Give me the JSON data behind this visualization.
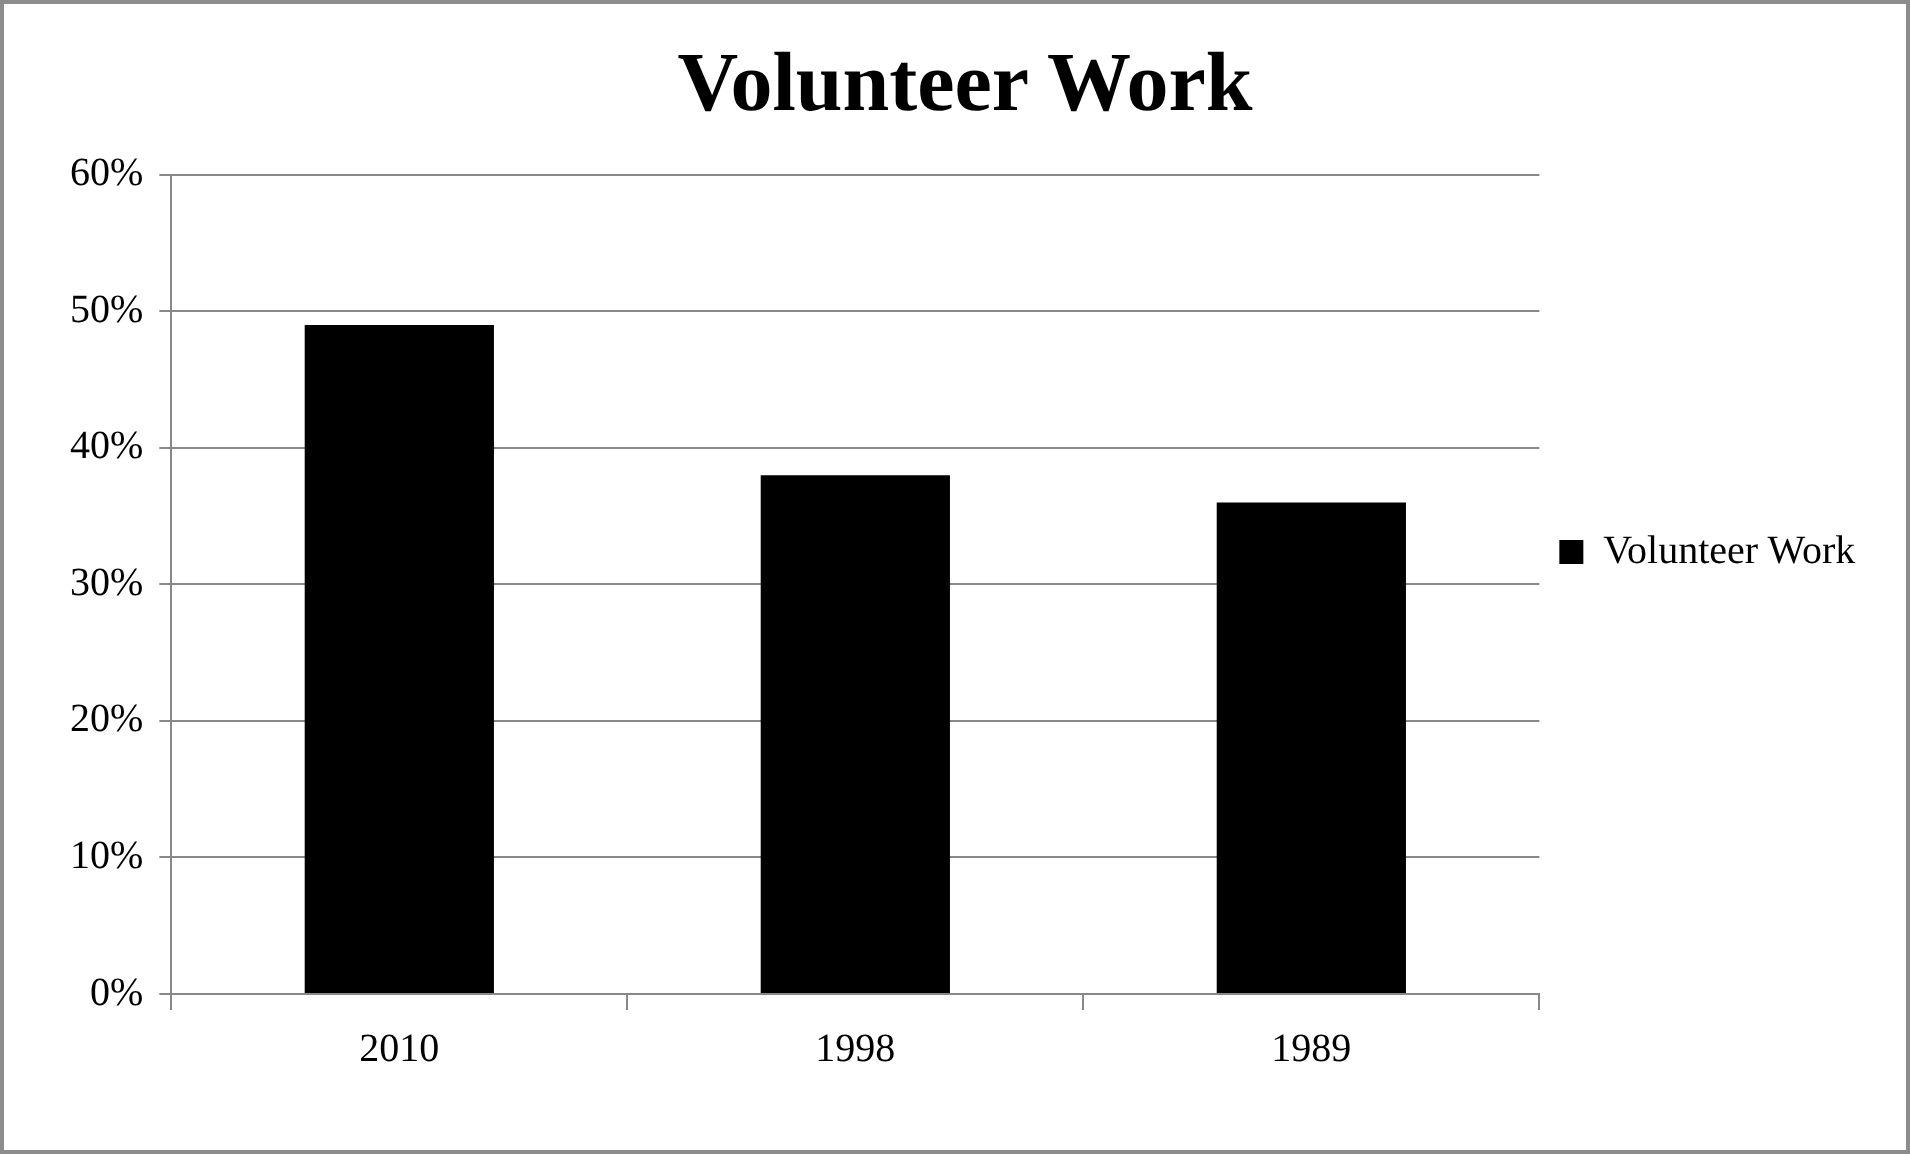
{
  "chart_data": {
    "type": "bar",
    "title": "Volunteer Work",
    "categories": [
      "2010",
      "1998",
      "1989"
    ],
    "series": [
      {
        "name": "Volunteer Work",
        "color": "#000000",
        "values": [
          49,
          38,
          36
        ]
      }
    ],
    "ylim": [
      0,
      60
    ],
    "yticks": [
      {
        "value": 0,
        "label": "0%"
      },
      {
        "value": 10,
        "label": "10%"
      },
      {
        "value": 20,
        "label": "20%"
      },
      {
        "value": 30,
        "label": "30%"
      },
      {
        "value": 40,
        "label": "40%"
      },
      {
        "value": 50,
        "label": "50%"
      },
      {
        "value": 60,
        "label": "60%"
      }
    ],
    "grid": "y",
    "legend": "right"
  }
}
